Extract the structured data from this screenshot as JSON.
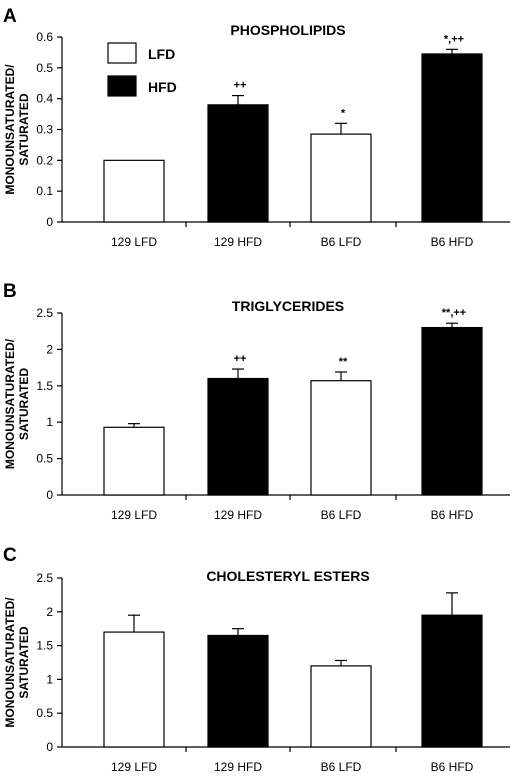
{
  "legend": {
    "items": [
      {
        "label": "LFD",
        "color": "#ffffff"
      },
      {
        "label": "HFD",
        "color": "#000000"
      }
    ]
  },
  "ylabel_line1": "MONOUNSATURATED/",
  "ylabel_line2": "SATURATED",
  "chart_data": [
    {
      "type": "bar",
      "panel": "A",
      "title": "PHOSPHOLIPIDS",
      "ylabel": "MONOUNSATURATED/ SATURATED",
      "categories": [
        "129 LFD",
        "129 HFD",
        "B6 LFD",
        "B6 HFD"
      ],
      "values": [
        0.2,
        0.38,
        0.285,
        0.545
      ],
      "errors": [
        0,
        0.03,
        0.035,
        0.015
      ],
      "fill": [
        "#ffffff",
        "#000000",
        "#ffffff",
        "#000000"
      ],
      "annotations": [
        "",
        "++",
        "*",
        "*,++"
      ],
      "ylim": [
        0,
        0.6
      ],
      "yticks": [
        "0",
        "0.1",
        "0.2",
        "0.3",
        "0.4",
        "0.5",
        "0.6"
      ]
    },
    {
      "type": "bar",
      "panel": "B",
      "title": "TRIGLYCERIDES",
      "ylabel": "MONOUNSATURATED/ SATURATED",
      "categories": [
        "129 LFD",
        "129 HFD",
        "B6 LFD",
        "B6 HFD"
      ],
      "values": [
        0.93,
        1.6,
        1.57,
        2.3
      ],
      "errors": [
        0.05,
        0.13,
        0.12,
        0.06
      ],
      "fill": [
        "#ffffff",
        "#000000",
        "#ffffff",
        "#000000"
      ],
      "annotations": [
        "",
        "++",
        "**",
        "**,++"
      ],
      "ylim": [
        0,
        2.5
      ],
      "yticks": [
        "0",
        "0.5",
        "1",
        "1.5",
        "2",
        "2.5"
      ]
    },
    {
      "type": "bar",
      "panel": "C",
      "title": "CHOLESTERYL ESTERS",
      "ylabel": "MONOUNSATURATED/ SATURATED",
      "categories": [
        "129 LFD",
        "129 HFD",
        "B6 LFD",
        "B6 HFD"
      ],
      "values": [
        1.7,
        1.65,
        1.2,
        1.95
      ],
      "errors": [
        0.25,
        0.1,
        0.08,
        0.33
      ],
      "fill": [
        "#ffffff",
        "#000000",
        "#ffffff",
        "#000000"
      ],
      "annotations": [
        "",
        "",
        "",
        ""
      ],
      "ylim": [
        0,
        2.5
      ],
      "yticks": [
        "0",
        "0.5",
        "1",
        "1.5",
        "2",
        "2.5"
      ]
    }
  ]
}
